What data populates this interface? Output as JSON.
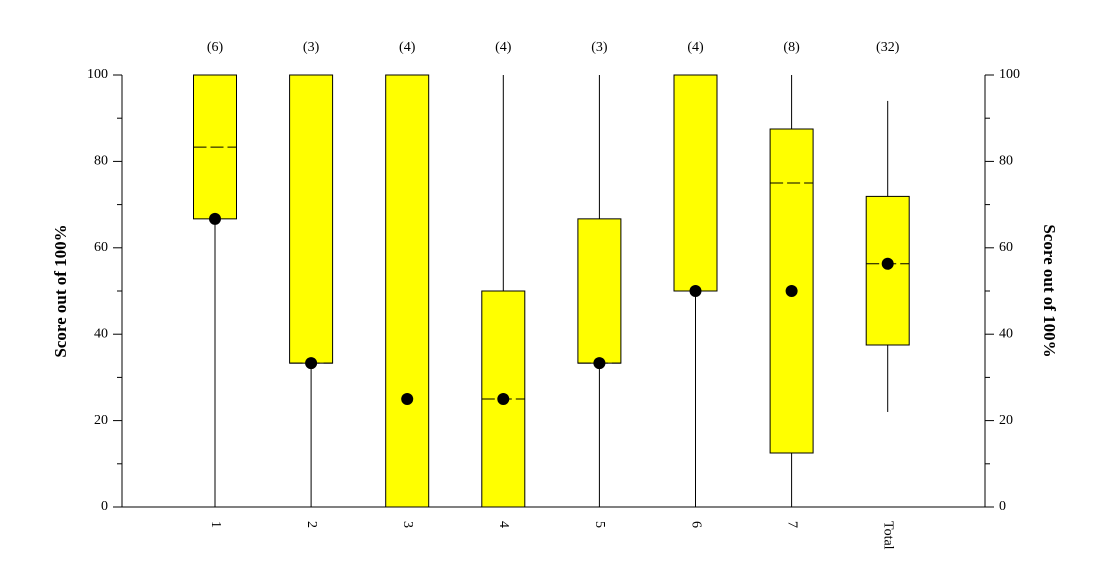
{
  "chart_data": {
    "type": "box",
    "y_label": "Score out of 100%",
    "y2_label": "Score out of 100%",
    "categories": [
      "1",
      "2",
      "3",
      "4",
      "5",
      "6",
      "7",
      "Total"
    ],
    "count_labels": [
      "(6)",
      "(3)",
      "(4)",
      "(4)",
      "(3)",
      "(4)",
      "(8)",
      "(32)"
    ],
    "boxes": [
      {
        "whisker_low": 0,
        "q1": 66.7,
        "median": 83.3,
        "q3": 100,
        "whisker_high": 100,
        "mean": 66.7
      },
      {
        "whisker_low": 0,
        "q1": 33.3,
        "median": 33.3,
        "q3": 100,
        "whisker_high": 100,
        "mean": 33.3
      },
      {
        "whisker_low": 0,
        "q1": 0,
        "median": 0,
        "q3": 100,
        "whisker_high": 100,
        "mean": 25
      },
      {
        "whisker_low": 0,
        "q1": 0,
        "median": 25,
        "q3": 50,
        "whisker_high": 100,
        "mean": 25
      },
      {
        "whisker_low": 0,
        "q1": 33.3,
        "median": 33.3,
        "q3": 66.7,
        "whisker_high": 100,
        "mean": 33.3
      },
      {
        "whisker_low": 0,
        "q1": 50,
        "median": 50,
        "q3": 100,
        "whisker_high": 100,
        "mean": 50
      },
      {
        "whisker_low": 0,
        "q1": 12.5,
        "median": 75,
        "q3": 87.5,
        "whisker_high": 100,
        "mean": 50
      },
      {
        "whisker_low": 22,
        "q1": 37.5,
        "median": 56.3,
        "q3": 71.9,
        "whisker_high": 94,
        "mean": 56.3
      }
    ],
    "color": "#ffff00",
    "ylim": [
      0,
      100
    ],
    "yticks": [
      0,
      20,
      40,
      60,
      80,
      100
    ],
    "yminor_ticks": [
      10,
      30,
      50,
      70,
      90
    ],
    "y2lim": [
      0,
      100
    ],
    "y2ticks": [
      0,
      20,
      40,
      60,
      80,
      100
    ],
    "y2minor_ticks": [
      10,
      30,
      50,
      70,
      90
    ]
  }
}
